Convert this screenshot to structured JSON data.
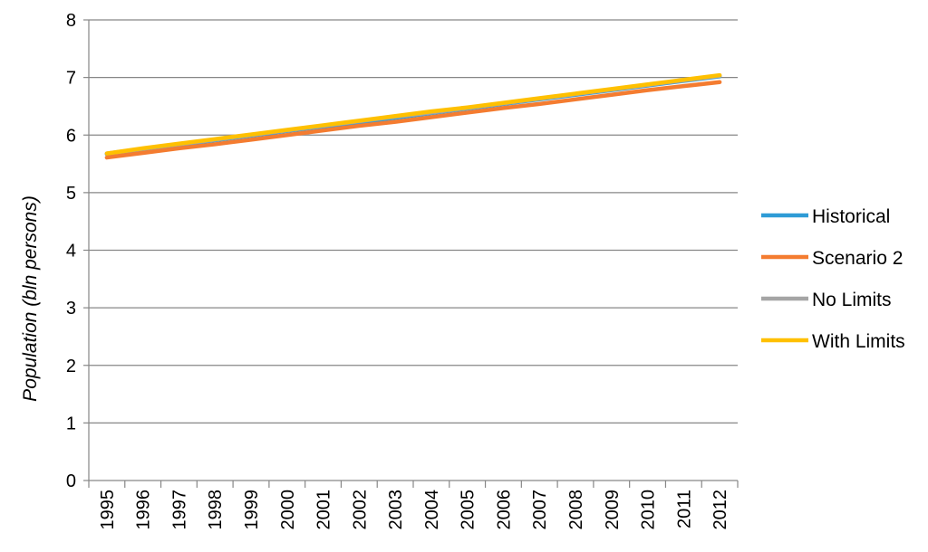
{
  "chart_data": {
    "type": "line",
    "title": "",
    "xlabel": "",
    "ylabel": "Population (bln persons)",
    "ylim": [
      0,
      8
    ],
    "yticks": [
      "0",
      "1",
      "2",
      "3",
      "4",
      "5",
      "6",
      "7",
      "8"
    ],
    "categories": [
      "1995",
      "1996",
      "1997",
      "1998",
      "1999",
      "2000",
      "2001",
      "2002",
      "2003",
      "2004",
      "2005",
      "2006",
      "2007",
      "2008",
      "2009",
      "2010",
      "2011",
      "2012"
    ],
    "grid": "horizontal",
    "legend_position": "right",
    "series": [
      {
        "name": "Historical",
        "color": "#2E9BD6",
        "values": [
          5.67,
          5.75,
          5.83,
          5.91,
          5.99,
          6.07,
          6.15,
          6.22,
          6.3,
          6.38,
          6.46,
          6.54,
          6.62,
          6.7,
          6.78,
          6.86,
          6.94,
          7.02
        ]
      },
      {
        "name": "Scenario 2",
        "color": "#F47C30",
        "values": [
          5.61,
          5.69,
          5.77,
          5.84,
          5.92,
          6.0,
          6.08,
          6.16,
          6.23,
          6.31,
          6.39,
          6.47,
          6.54,
          6.62,
          6.7,
          6.78,
          6.85,
          6.92
        ]
      },
      {
        "name": "No Limits",
        "color": "#A5A5A5",
        "values": [
          5.68,
          5.76,
          5.84,
          5.92,
          6.0,
          6.08,
          6.16,
          6.24,
          6.32,
          6.39,
          6.47,
          6.55,
          6.63,
          6.71,
          6.79,
          6.87,
          6.95,
          7.03
        ]
      },
      {
        "name": "With Limits",
        "color": "#FFC000",
        "values": [
          5.68,
          5.77,
          5.85,
          5.93,
          6.01,
          6.09,
          6.17,
          6.25,
          6.33,
          6.41,
          6.48,
          6.56,
          6.64,
          6.72,
          6.8,
          6.88,
          6.96,
          7.04
        ]
      }
    ]
  }
}
